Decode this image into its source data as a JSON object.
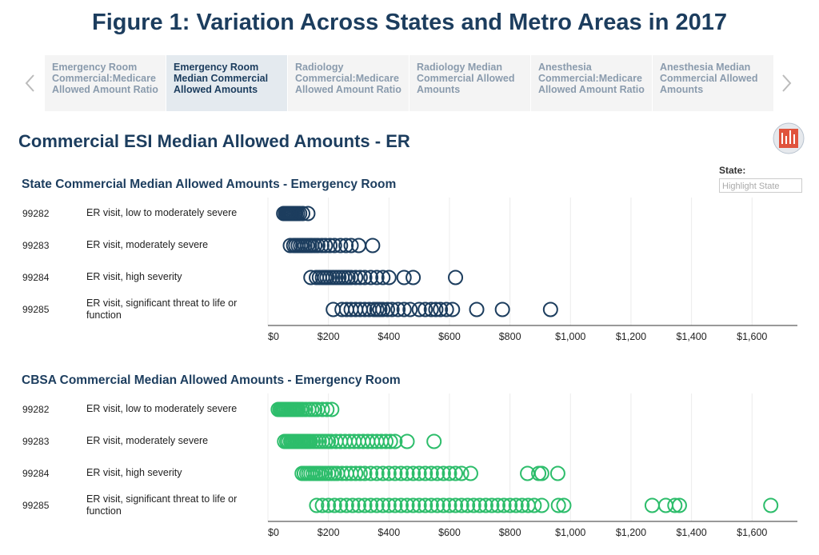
{
  "header": {
    "title": "Figure 1: Variation Across States and Metro Areas in 2017"
  },
  "tabs": [
    "Emergency Room Commercial:Medicare Allowed Amount Ratio",
    "Emergency Room Median Commercial Allowed Amounts",
    "Radiology Commercial:Medicare Allowed Amount Ratio",
    "Radiology Median Commercial Allowed Amounts",
    "Anesthesia Commercial:Medicare Allowed Amount Ratio",
    "Anesthesia Median Commercial Allowed Amounts"
  ],
  "section_title": "Commercial ESI Median Allowed Amounts - ER",
  "filter": {
    "label": "State:",
    "placeholder": "Highlight State"
  },
  "chart_data": [
    {
      "type": "strip",
      "title": "State Commercial Median Allowed Amounts - Emergency Room",
      "color": "#1c3d5e",
      "xlim": [
        0,
        1750
      ],
      "xticks": [
        {
          "value": 0,
          "label": "$0"
        },
        {
          "value": 200,
          "label": "$200"
        },
        {
          "value": 400,
          "label": "$400"
        },
        {
          "value": 600,
          "label": "$600"
        },
        {
          "value": 800,
          "label": "$800"
        },
        {
          "value": 1000,
          "label": "$1,000"
        },
        {
          "value": 1200,
          "label": "$1,200"
        },
        {
          "value": 1400,
          "label": "$1,400"
        },
        {
          "value": 1600,
          "label": "$1,600"
        }
      ],
      "rows": [
        {
          "code": "99282",
          "label": "ER visit, low to moderately severe",
          "values": [
            52,
            58,
            63,
            66,
            70,
            74,
            78,
            82,
            87,
            92,
            98,
            105,
            115,
            132
          ]
        },
        {
          "code": "99283",
          "label": "ER visit, moderately severe",
          "values": [
            74,
            85,
            92,
            100,
            108,
            115,
            122,
            130,
            138,
            145,
            155,
            165,
            178,
            190,
            205,
            220,
            240,
            258,
            275,
            300,
            346
          ]
        },
        {
          "code": "99284",
          "label": "ER visit, high severity",
          "values": [
            142,
            160,
            170,
            180,
            188,
            195,
            205,
            215,
            225,
            235,
            245,
            255,
            265,
            275,
            290,
            305,
            320,
            340,
            360,
            380,
            400,
            450,
            480,
            620
          ]
        },
        {
          "code": "99285",
          "label": "ER visit, significant threat to life or function",
          "values": [
            216,
            245,
            260,
            275,
            290,
            305,
            320,
            335,
            350,
            360,
            370,
            380,
            395,
            410,
            430,
            450,
            470,
            500,
            520,
            540,
            555,
            570,
            590,
            610,
            690,
            775,
            934
          ]
        }
      ]
    },
    {
      "type": "strip",
      "title": "CBSA Commercial Median Allowed Amounts - Emergency Room",
      "color": "#2dbd6b",
      "xlim": [
        0,
        1750
      ],
      "xticks": [
        {
          "value": 0,
          "label": "$0"
        },
        {
          "value": 200,
          "label": "$200"
        },
        {
          "value": 400,
          "label": "$400"
        },
        {
          "value": 600,
          "label": "$600"
        },
        {
          "value": 800,
          "label": "$800"
        },
        {
          "value": 1000,
          "label": "$1,000"
        },
        {
          "value": 1200,
          "label": "$1,200"
        },
        {
          "value": 1400,
          "label": "$1,400"
        },
        {
          "value": 1600,
          "label": "$1,600"
        }
      ],
      "rows": [
        {
          "code": "99282",
          "label": "ER visit, low to moderately severe",
          "values": [
            34,
            40,
            45,
            50,
            55,
            60,
            65,
            70,
            75,
            80,
            85,
            90,
            95,
            100,
            108,
            115,
            125,
            135,
            145,
            155,
            165,
            180,
            195,
            211
          ]
        },
        {
          "code": "99283",
          "label": "ER visit, moderately severe",
          "values": [
            55,
            62,
            68,
            75,
            80,
            85,
            90,
            95,
            100,
            105,
            110,
            115,
            120,
            125,
            130,
            135,
            140,
            150,
            160,
            170,
            180,
            190,
            200,
            210,
            225,
            240,
            255,
            270,
            285,
            300,
            315,
            330,
            345,
            360,
            375,
            390,
            405,
            420,
            460,
            549
          ]
        },
        {
          "code": "99284",
          "label": "ER visit, high severity",
          "values": [
            113,
            120,
            128,
            135,
            142,
            150,
            158,
            165,
            172,
            180,
            190,
            200,
            210,
            220,
            230,
            245,
            260,
            275,
            290,
            305,
            320,
            340,
            360,
            380,
            400,
            420,
            440,
            460,
            480,
            500,
            520,
            540,
            560,
            580,
            600,
            620,
            640,
            670,
            858,
            895,
            905,
            958
          ]
        },
        {
          "code": "99285",
          "label": "ER visit, significant threat to life or function",
          "values": [
            161,
            180,
            200,
            220,
            240,
            260,
            280,
            300,
            320,
            340,
            360,
            380,
            400,
            420,
            440,
            460,
            480,
            500,
            520,
            540,
            560,
            580,
            600,
            620,
            640,
            660,
            680,
            700,
            720,
            740,
            760,
            780,
            800,
            820,
            840,
            860,
            880,
            905,
            960,
            978,
            1270,
            1315,
            1345,
            1360,
            1662
          ]
        }
      ]
    }
  ]
}
